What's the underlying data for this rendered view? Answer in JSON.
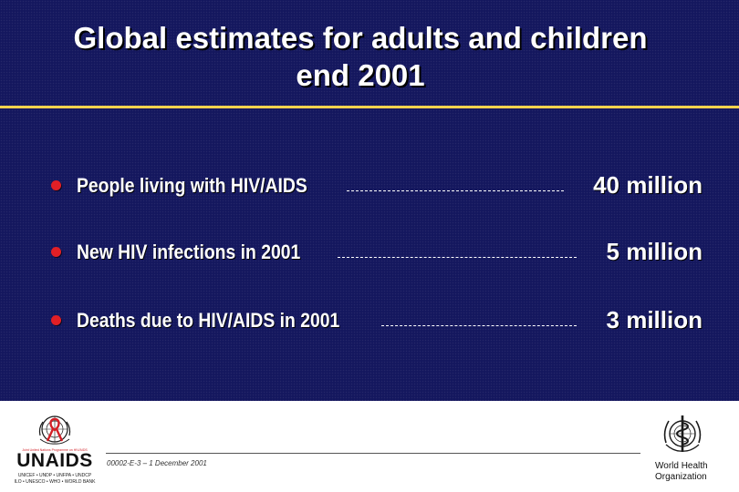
{
  "slide": {
    "title_line1": "Global estimates for adults and children",
    "title_line2": "end 2001"
  },
  "stats": [
    {
      "label": "People living with HIV/AIDS",
      "value": "40 million"
    },
    {
      "label": "New HIV infections in 2001",
      "value": "5 million"
    },
    {
      "label": "Deaths due to HIV/AIDS in 2001",
      "value": "3 million"
    }
  ],
  "footer": {
    "code": "00002-E-3 – 1 December 2001",
    "unaids": {
      "tagline": "Joint United Nations Programme on HIV/AIDS",
      "wordmark": "UNAIDS",
      "sponsors_line1": "UNICEF • UNDP • UNFPA • UNDCP",
      "sponsors_line2": "ILO • UNESCO • WHO • WORLD BANK"
    },
    "who": {
      "line1": "World Health",
      "line2": "Organization"
    }
  },
  "colors": {
    "background": "#14175e",
    "title_rule": "#ffd24d",
    "bullet": "#e21f26",
    "text": "#ffffff"
  }
}
